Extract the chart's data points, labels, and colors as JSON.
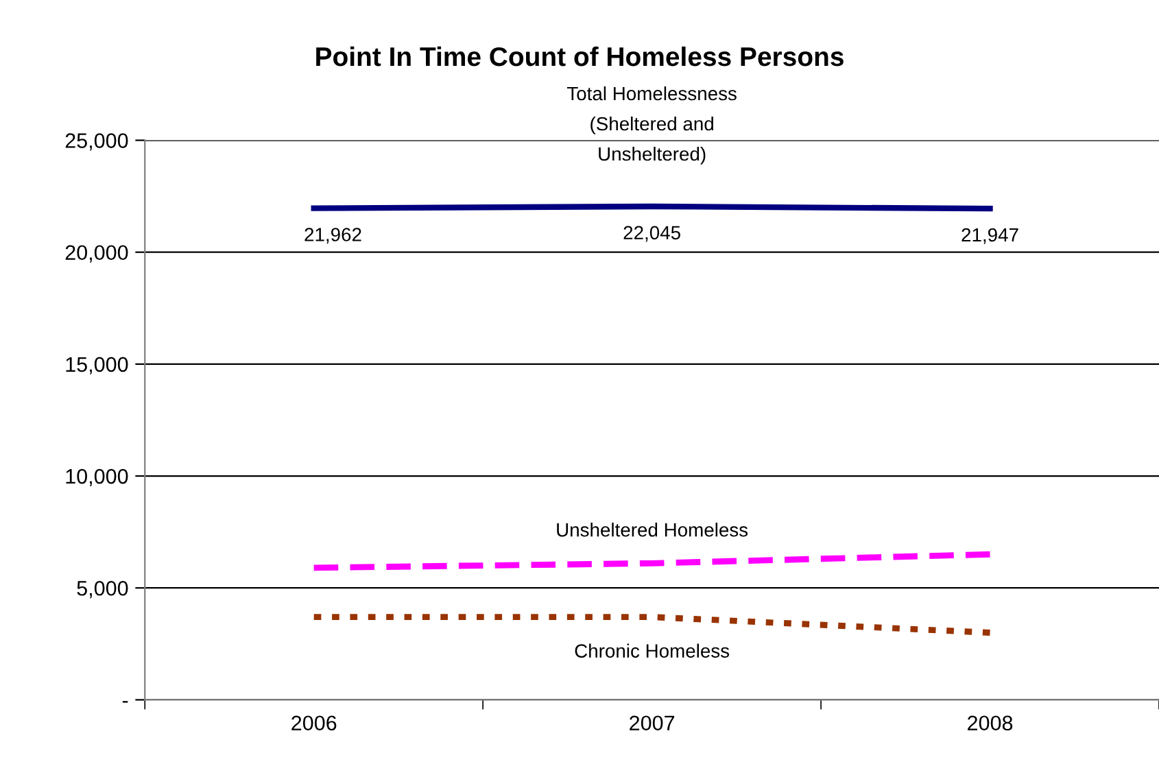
{
  "chart_data": {
    "type": "line",
    "title": "Point In Time Count of Homeless Persons",
    "categories": [
      "2006",
      "2007",
      "2008"
    ],
    "series": [
      {
        "name": "Total Homelessness\n(Sheltered and\nUnsheltered)",
        "color": "#000080",
        "values": [
          21962,
          22045,
          21947
        ],
        "value_labels": [
          "21,962",
          "22,045",
          "21,947"
        ],
        "line_style": "solid"
      },
      {
        "name": "Unsheltered Homeless",
        "color": "#ff00ff",
        "values": [
          5900,
          6100,
          6500
        ],
        "line_style": "dashed"
      },
      {
        "name": "Chronic Homeless",
        "color": "#993300",
        "values": [
          3700,
          3700,
          3000
        ],
        "line_style": "dotted"
      }
    ],
    "ylim": [
      0,
      25000
    ],
    "yticks": [
      {
        "value": 0,
        "label": "-"
      },
      {
        "value": 5000,
        "label": "5,000"
      },
      {
        "value": 10000,
        "label": "10,000"
      },
      {
        "value": 15000,
        "label": "15,000"
      },
      {
        "value": 20000,
        "label": "20,000"
      },
      {
        "value": 25000,
        "label": "25,000"
      }
    ],
    "grid": "y",
    "legend": false,
    "marker": "none"
  }
}
